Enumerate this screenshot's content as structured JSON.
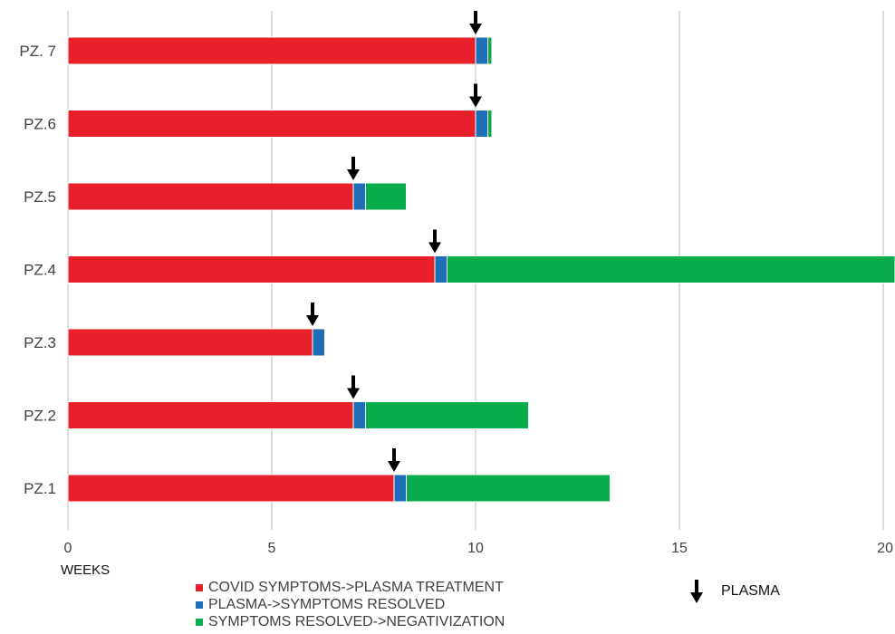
{
  "chart_data": {
    "type": "bar",
    "orientation": "horizontal",
    "stacked": true,
    "categories": [
      "PZ. 7",
      "PZ.6",
      "PZ.5",
      "PZ.4",
      "PZ.3",
      "PZ.2",
      "PZ.1"
    ],
    "series": [
      {
        "name": "COVID SYMPTOMS->PLASMA TREATMENT",
        "color": "#e8202a",
        "values": [
          10,
          10,
          7,
          9,
          6,
          7,
          8
        ]
      },
      {
        "name": "PLASMA->SYMPTOMS RESOLVED",
        "color": "#1f6fb8",
        "values": [
          0.3,
          0.3,
          0.3,
          0.3,
          0.3,
          0.3,
          0.3
        ]
      },
      {
        "name": "SYMPTOMS RESOLVED->NEGATIVIZATION",
        "color": "#0aad4b",
        "values": [
          0.1,
          0.1,
          1.0,
          11.0,
          0,
          4.0,
          5.0
        ]
      }
    ],
    "plasma_marker_weeks": [
      10,
      10,
      7,
      9,
      6,
      7,
      8
    ],
    "plasma_label": "PLASMA",
    "xlabel": "WEEKS",
    "xlim": [
      0,
      20
    ],
    "xticks": [
      0,
      5,
      10,
      15,
      20
    ],
    "grid": "vertical",
    "legend_position": "bottom"
  }
}
